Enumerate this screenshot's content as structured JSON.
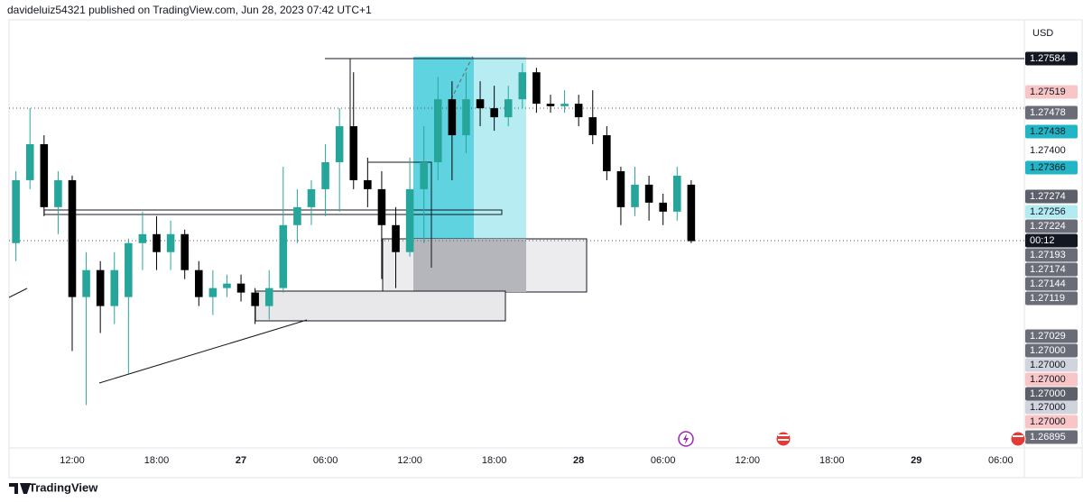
{
  "header": "davideluiz54321 published on TradingView.com, Jun 28, 2023 07:42 UTC+1",
  "footer": "TradingView",
  "chart_data": {
    "type": "candlestick",
    "currency": "USD",
    "countdown": "00:12",
    "up_color": "#26a69a",
    "down_color": "#000000",
    "xlim": [
      7.51,
      79.68
    ],
    "ylim": [
      1.26805,
      1.27662
    ],
    "xticks": [
      {
        "value": 12,
        "label": "12:00"
      },
      {
        "value": 18,
        "label": "18:00"
      },
      {
        "value": 24,
        "label": "27"
      },
      {
        "value": 30,
        "label": "06:00"
      },
      {
        "value": 36,
        "label": "12:00"
      },
      {
        "value": 42,
        "label": "18:00"
      },
      {
        "value": 48,
        "label": "28"
      },
      {
        "value": 54,
        "label": "06:00"
      },
      {
        "value": 60,
        "label": "12:00"
      },
      {
        "value": 66,
        "label": "18:00"
      },
      {
        "value": 72,
        "label": "29"
      },
      {
        "value": 78,
        "label": "06:00"
      }
    ],
    "yticks": [
      {
        "value": 1.274,
        "label": "1.27400"
      }
    ],
    "x": [
      8,
      9,
      10,
      11,
      12,
      13,
      14,
      15,
      16,
      17,
      18,
      19,
      20,
      21,
      22,
      23,
      24,
      25,
      26,
      27,
      28,
      29,
      30,
      31,
      32,
      33,
      34,
      35,
      36,
      37,
      38,
      39,
      40,
      41,
      42,
      43,
      44,
      45,
      46,
      47,
      48,
      49,
      50,
      51,
      52,
      53,
      54,
      55,
      56
    ],
    "open": [
      1.27215,
      1.27341,
      1.27413,
      1.27287,
      1.27341,
      1.27107,
      1.27161,
      1.27089,
      1.27107,
      1.27215,
      1.27233,
      1.27197,
      1.27233,
      1.27161,
      1.27107,
      1.27125,
      1.27134,
      1.27116,
      1.27089,
      1.27125,
      1.27251,
      1.27287,
      1.27323,
      1.27377,
      1.27449,
      1.27341,
      1.27323,
      1.27251,
      1.27197,
      1.27323,
      1.27377,
      1.27503,
      1.27431,
      1.27503,
      1.27485,
      1.27467,
      1.27503,
      1.27557,
      1.27494,
      1.27489,
      1.27494,
      1.27467,
      1.27431,
      1.27359,
      1.27287,
      1.27332,
      1.27296,
      1.27278,
      1.27332
    ],
    "high": [
      1.27359,
      1.27485,
      1.27431,
      1.27359,
      1.2735,
      1.27197,
      1.27179,
      1.27197,
      1.27224,
      1.27278,
      1.27269,
      1.2726,
      1.27242,
      1.27179,
      1.27161,
      1.27152,
      1.27152,
      1.27125,
      1.27161,
      1.27368,
      1.27323,
      1.27341,
      1.27413,
      1.27485,
      1.27557,
      1.27386,
      1.27359,
      1.27287,
      1.27386,
      1.27449,
      1.27548,
      1.27539,
      1.27557,
      1.27539,
      1.2753,
      1.2753,
      1.27575,
      1.27566,
      1.27512,
      1.27521,
      1.27512,
      1.27521,
      1.27449,
      1.27368,
      1.27368,
      1.2735,
      1.27314,
      1.27368,
      1.27341
    ],
    "low": [
      1.27179,
      1.27323,
      1.27269,
      1.27233,
      1.26999,
      1.26891,
      1.27035,
      1.27053,
      1.26954,
      1.27161,
      1.27161,
      1.27161,
      1.27143,
      1.27089,
      1.27071,
      1.27107,
      1.27098,
      1.27053,
      1.27062,
      1.27116,
      1.27215,
      1.27251,
      1.27269,
      1.27278,
      1.27323,
      1.27287,
      1.27143,
      1.27125,
      1.27188,
      1.27215,
      1.27341,
      1.27341,
      1.27395,
      1.27449,
      1.2744,
      1.27449,
      1.27485,
      1.27476,
      1.27476,
      1.27476,
      1.27449,
      1.27413,
      1.27341,
      1.27251,
      1.27269,
      1.2726,
      1.27251,
      1.2726,
      1.27215
    ],
    "close": [
      1.27341,
      1.27413,
      1.27287,
      1.27341,
      1.27107,
      1.27161,
      1.27089,
      1.27161,
      1.27215,
      1.27233,
      1.27197,
      1.27233,
      1.27161,
      1.27107,
      1.27125,
      1.27134,
      1.27116,
      1.27089,
      1.27125,
      1.27251,
      1.27287,
      1.27323,
      1.27377,
      1.27449,
      1.27341,
      1.27323,
      1.27251,
      1.27197,
      1.27323,
      1.27377,
      1.27503,
      1.27431,
      1.27503,
      1.27485,
      1.27467,
      1.27503,
      1.27557,
      1.27494,
      1.27489,
      1.27494,
      1.27467,
      1.27431,
      1.27359,
      1.27287,
      1.27332,
      1.27296,
      1.27278,
      1.2735,
      1.27219
    ],
    "price_labels": [
      {
        "value": 1.27584,
        "color": "#131722",
        "text_color": "#ffffff"
      },
      {
        "value": 1.27519,
        "color": "#f8c6c6",
        "text_color": "#131722"
      },
      {
        "value": 1.27478,
        "color": "#6a6d78",
        "text_color": "#ffffff"
      },
      {
        "value": 1.27438,
        "color": "#22b5c6",
        "text_color": "#131722"
      },
      {
        "value": 1.27366,
        "color": "#22b5c6",
        "text_color": "#131722"
      },
      {
        "value": 1.27274,
        "color": "#5d606b",
        "text_color": "#ffffff"
      },
      {
        "value": 1.27256,
        "color": "#b2ebf2",
        "text_color": "#131722"
      },
      {
        "value": 1.27224,
        "color": "#6a6d78",
        "text_color": "#ffffff"
      },
      {
        "value": 1.27193,
        "color": "#6a6d78",
        "text_color": "#ffffff"
      },
      {
        "value": 1.27174,
        "color": "#6a6d78",
        "text_color": "#ffffff"
      },
      {
        "value": 1.27144,
        "color": "#6a6d78",
        "text_color": "#ffffff"
      },
      {
        "value": 1.27119,
        "color": "#6a6d78",
        "text_color": "#ffffff"
      },
      {
        "value": 1.27029,
        "color": "#6a6d78",
        "text_color": "#ffffff"
      },
      {
        "value": 1.27,
        "label": "1.27000",
        "color": "#6a6d78",
        "text_color": "#ffffff"
      },
      {
        "value": 1.27,
        "label": "1.27000",
        "color": "#d1d4dc",
        "text_color": "#131722"
      },
      {
        "value": 1.27,
        "label": "1.27000",
        "color": "#f8c6c6",
        "text_color": "#131722"
      },
      {
        "value": 1.27,
        "label": "1.27000",
        "color": "#5d606b",
        "text_color": "#ffffff"
      },
      {
        "value": 1.27,
        "label": "1.27000",
        "color": "#d1d4dc",
        "text_color": "#131722"
      },
      {
        "value": 1.27,
        "label": "1.27000",
        "color": "#f8c6c6",
        "text_color": "#131722"
      },
      {
        "value": 1.26895,
        "color": "#6a6d78",
        "text_color": "#ffffff"
      }
    ]
  }
}
